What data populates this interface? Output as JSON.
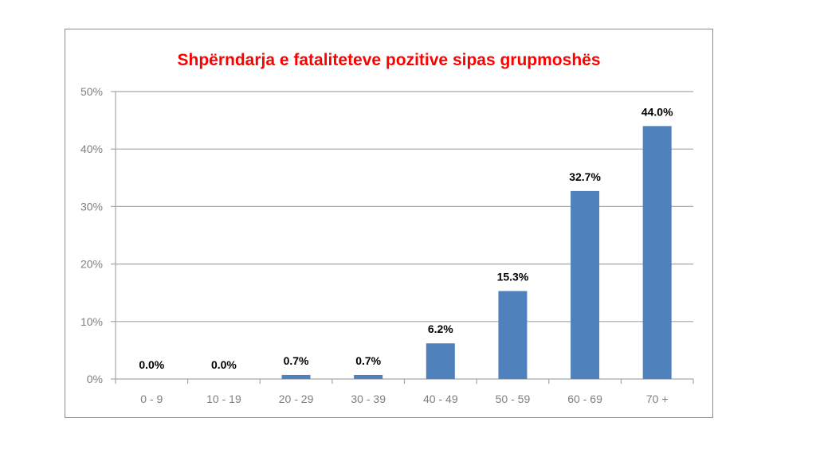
{
  "chart_data": {
    "type": "bar",
    "title": "Shpërndarja e fataliteteve pozitive sipas grupmoshës",
    "title_color": "#ff0000",
    "categories": [
      "0 - 9",
      "10 - 19",
      "20 - 29",
      "30 - 39",
      "40 - 49",
      "50 - 59",
      "60 - 69",
      "70 +"
    ],
    "values": [
      0.0,
      0.0,
      0.7,
      0.7,
      6.2,
      15.3,
      32.7,
      44.0
    ],
    "data_labels": [
      "0.0%",
      "0.0%",
      "0.7%",
      "0.7%",
      "6.2%",
      "15.3%",
      "32.7%",
      "44.0%"
    ],
    "ylim": [
      0,
      50
    ],
    "yticks": [
      0,
      10,
      20,
      30,
      40,
      50
    ],
    "ytick_labels": [
      "0%",
      "10%",
      "20%",
      "30%",
      "40%",
      "50%"
    ],
    "xlabel": "",
    "ylabel": "",
    "grid": true,
    "legend": "none",
    "bar_color": "#4f81bd",
    "grid_color": "#a6a6a6",
    "tick_label_color": "#7f7f7f",
    "data_label_color": "#000000"
  }
}
